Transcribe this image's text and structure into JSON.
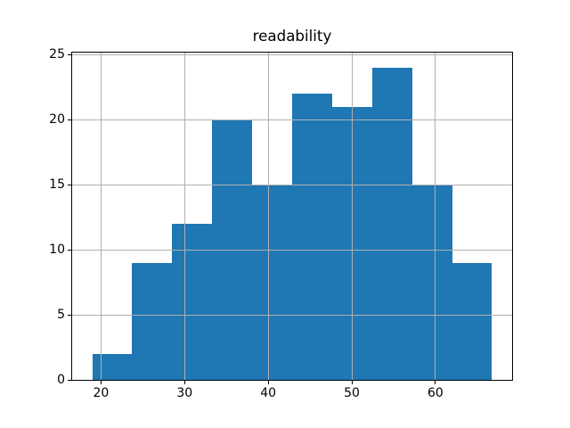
{
  "chart_data": {
    "type": "bar",
    "subtype": "histogram",
    "title": "readability",
    "xlabel": "",
    "ylabel": "",
    "bin_edges": [
      18.95,
      23.73,
      28.51,
      33.3,
      38.08,
      42.86,
      47.64,
      52.43,
      57.21,
      61.99,
      66.77
    ],
    "counts": [
      2,
      9,
      12,
      20,
      15,
      22,
      21,
      24,
      15,
      9
    ],
    "xticks": [
      20,
      30,
      40,
      50,
      60
    ],
    "yticks": [
      0,
      5,
      10,
      15,
      20,
      25
    ],
    "xtick_labels": [
      "20",
      "30",
      "40",
      "50",
      "60"
    ],
    "ytick_labels": [
      "0",
      "5",
      "10",
      "15",
      "20",
      "25"
    ],
    "xlim": [
      16.55,
      69.17
    ],
    "ylim": [
      0,
      25.2
    ],
    "grid": true,
    "legend_position": "none",
    "colors": {
      "bar": "#1f77b4",
      "grid": "#b0b0b0",
      "spine": "#000000",
      "background": "#ffffff",
      "text": "#000000"
    }
  }
}
